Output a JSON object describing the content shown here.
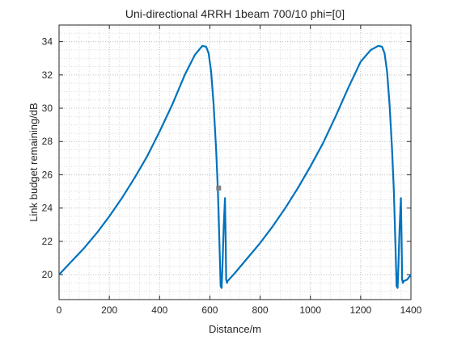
{
  "chart_data": {
    "type": "line",
    "title": "Uni-directional 4RRH 1beam 700/10 phi=[0]",
    "xlabel": "Distance/m",
    "ylabel": "Link budget remaining/dB",
    "xlim": [
      0,
      1400
    ],
    "ylim": [
      18.5,
      35
    ],
    "xticks": [
      0,
      200,
      400,
      600,
      800,
      1000,
      1200,
      1400
    ],
    "yticks": [
      20,
      22,
      24,
      26,
      28,
      30,
      32,
      34
    ],
    "grid": "major and minor dotted",
    "line_color": "#0072BD",
    "marker_color": "#808080",
    "series": [
      {
        "x": [
          0,
          50,
          100,
          150,
          200,
          250,
          300,
          350,
          400,
          450,
          500,
          540,
          570,
          585,
          595,
          605,
          615,
          625,
          632,
          638,
          643,
          647,
          650,
          655,
          660,
          663,
          665,
          668,
          670,
          700,
          750,
          800,
          850,
          900,
          950,
          1000,
          1050,
          1100,
          1150,
          1200,
          1240,
          1270,
          1285,
          1295,
          1305,
          1315,
          1325,
          1332,
          1338,
          1343,
          1347,
          1350,
          1355,
          1360,
          1363,
          1365,
          1368,
          1370,
          1385,
          1400
        ],
        "y": [
          20.0,
          20.8,
          21.6,
          22.5,
          23.5,
          24.6,
          25.8,
          27.1,
          28.6,
          30.2,
          32.0,
          33.2,
          33.75,
          33.7,
          33.3,
          32.2,
          30.2,
          27.5,
          25.0,
          22.0,
          19.3,
          19.2,
          20.5,
          22.8,
          24.6,
          22.0,
          19.7,
          19.5,
          19.6,
          20.1,
          21.0,
          21.9,
          22.9,
          24.0,
          25.2,
          26.5,
          27.9,
          29.5,
          31.2,
          32.8,
          33.5,
          33.75,
          33.7,
          33.3,
          32.2,
          30.2,
          27.5,
          25.0,
          22.0,
          19.3,
          19.2,
          20.5,
          22.8,
          24.6,
          22.0,
          19.7,
          19.5,
          19.6,
          19.7,
          20.0
        ]
      }
    ],
    "markers": [
      {
        "x": 635,
        "y": 25.2
      }
    ]
  }
}
